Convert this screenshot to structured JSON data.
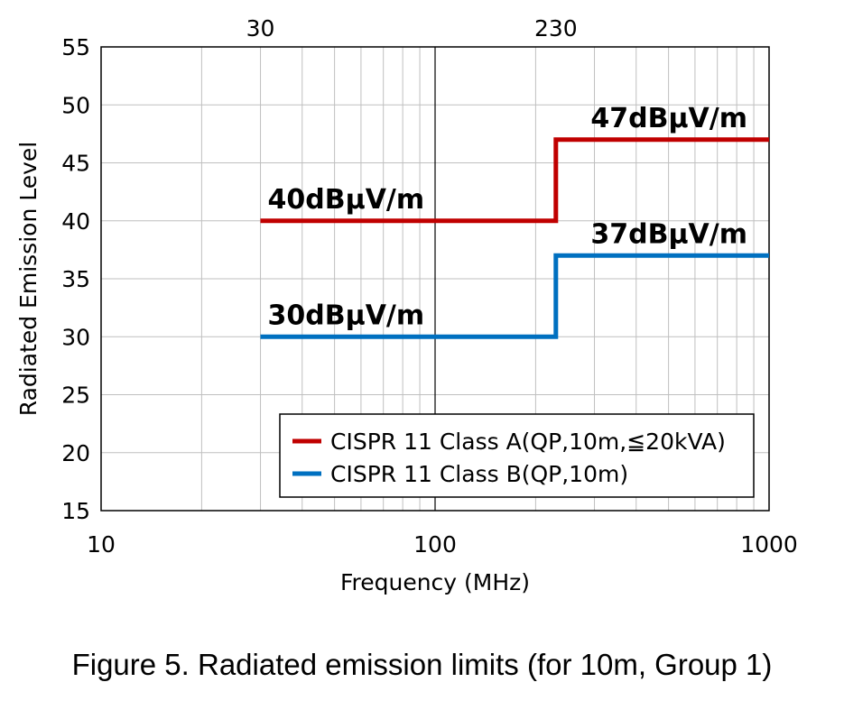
{
  "chart_data": {
    "type": "line",
    "x_scale": "log",
    "xlim": [
      10,
      1000
    ],
    "ylim": [
      15,
      55
    ],
    "y_ticks": [
      15,
      20,
      25,
      30,
      35,
      40,
      45,
      50,
      55
    ],
    "x_tick_labels": [
      {
        "value": 10,
        "label": "10"
      },
      {
        "value": 100,
        "label": "100"
      },
      {
        "value": 1000,
        "label": "1000"
      }
    ],
    "top_tick_labels": [
      {
        "value": 30,
        "label": "30"
      },
      {
        "value": 230,
        "label": "230"
      }
    ],
    "xlabel": "Frequency (MHz)",
    "ylabel": "Radiated Emission Level",
    "grid": true,
    "legend_position": "bottom-right",
    "series": [
      {
        "name": "CISPR 11 Class A(QP,10m,≦20kVA)",
        "color": "#c00000",
        "points": [
          [
            30,
            40
          ],
          [
            230,
            40
          ],
          [
            230,
            47
          ],
          [
            1000,
            47
          ]
        ]
      },
      {
        "name": "CISPR 11 Class B(QP,10m)",
        "color": "#0070c0",
        "points": [
          [
            30,
            30
          ],
          [
            230,
            30
          ],
          [
            230,
            37
          ],
          [
            1000,
            37
          ]
        ]
      }
    ],
    "annotations": [
      {
        "text": "40dBμV/m",
        "x": 30,
        "y": 40,
        "series": 0
      },
      {
        "text": "47dBμV/m",
        "x": 1000,
        "y": 47,
        "series": 0
      },
      {
        "text": "30dBμV/m",
        "x": 30,
        "y": 30,
        "series": 1
      },
      {
        "text": "37dBμV/m",
        "x": 1000,
        "y": 37,
        "series": 1
      }
    ]
  },
  "caption": "Figure 5. Radiated emission limits (for 10m, Group 1)"
}
